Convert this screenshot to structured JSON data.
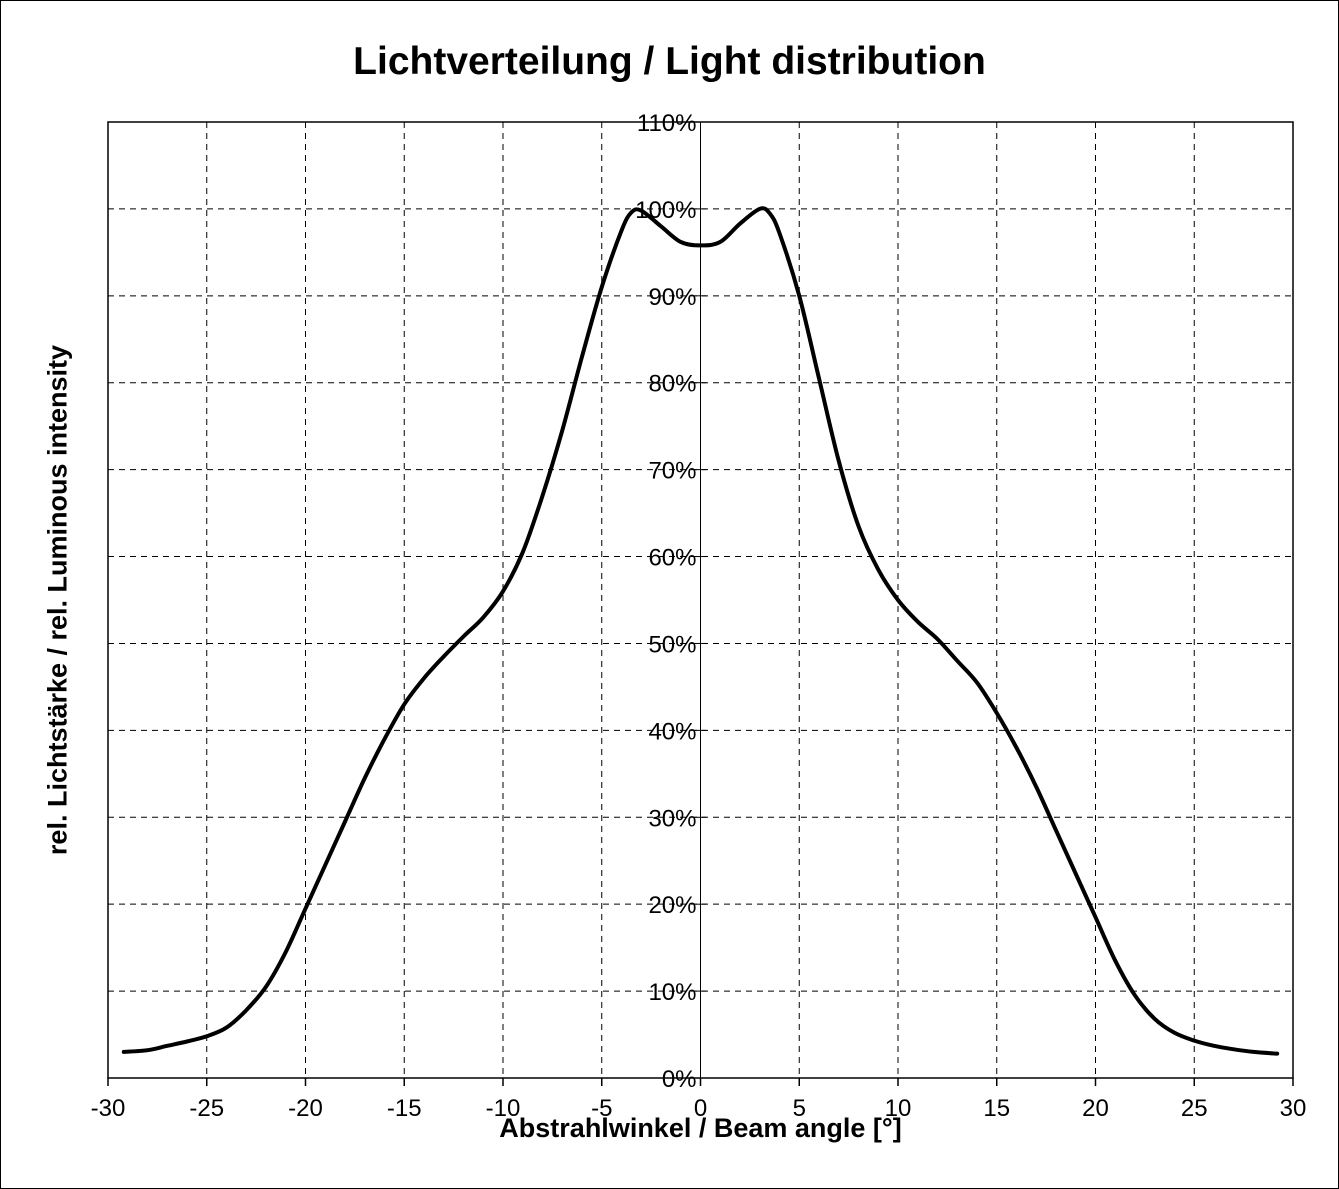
{
  "chart_data": {
    "type": "line",
    "title": "Lichtverteilung / Light distribution",
    "xlabel": "Abstrahlwinkel / Beam angle [°]",
    "ylabel": "rel. Lichtstärke / rel. Luminous intensity",
    "xlim": [
      -30,
      30
    ],
    "ylim": [
      0,
      110
    ],
    "x_ticks": [
      "-30",
      "-25",
      "-20",
      "-15",
      "-10",
      "-5",
      "0",
      "5",
      "10",
      "15",
      "20",
      "25",
      "30"
    ],
    "y_ticks": [
      "0%",
      "10%",
      "20%",
      "30%",
      "40%",
      "50%",
      "60%",
      "70%",
      "80%",
      "90%",
      "100%",
      "110%"
    ],
    "grid": true,
    "legend": "none",
    "series": [
      {
        "color": "#000000",
        "x": [
          -29.2,
          -28,
          -27,
          -26,
          -25,
          -24,
          -23,
          -22,
          -21,
          -20,
          -19,
          -18,
          -17,
          -16,
          -15,
          -14,
          -13,
          -12,
          -11,
          -10,
          -9,
          -8,
          -7,
          -6,
          -5,
          -4,
          -3.5,
          -3,
          -2,
          -1,
          0,
          1,
          2,
          3,
          3.5,
          4,
          5,
          6,
          7,
          8,
          9,
          10,
          11,
          12,
          13,
          14,
          15,
          16,
          17,
          18,
          19,
          20,
          21,
          22,
          23,
          24,
          25,
          26,
          27,
          28,
          29.2
        ],
        "y": [
          3,
          3.2,
          3.7,
          4.2,
          4.8,
          5.8,
          7.8,
          10.5,
          14.5,
          19.5,
          24.5,
          29.5,
          34.5,
          39,
          43,
          46,
          48.5,
          50.8,
          53,
          56,
          60.5,
          67,
          74.5,
          83,
          91,
          97.5,
          99.6,
          99.8,
          98,
          96.2,
          95.8,
          96.2,
          98.3,
          100,
          99.5,
          97.2,
          90,
          80.5,
          71,
          63.5,
          58.5,
          55,
          52.5,
          50.5,
          48,
          45.5,
          42,
          38,
          33.5,
          28.5,
          23.5,
          18.5,
          13.5,
          9.5,
          6.8,
          5.2,
          4.3,
          3.7,
          3.3,
          3.0,
          2.8
        ]
      }
    ]
  }
}
